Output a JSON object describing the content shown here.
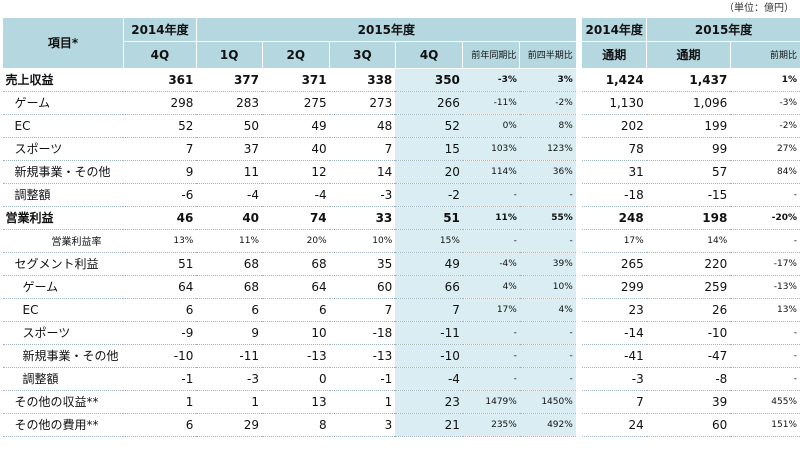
{
  "unit_note": "（単位：億円）",
  "header": {
    "item": "項目*",
    "y2014": "2014年度",
    "y2015": "2015年度",
    "y2014_annual": "2014年度",
    "y2015_annual": "2015年度",
    "q2014_4q": "4Q",
    "q1": "1Q",
    "q2": "2Q",
    "q3": "3Q",
    "q4": "4Q",
    "yoy": "前年同期比",
    "qoq": "前四半期比",
    "full_year_2014": "通期",
    "full_year_2015": "通期",
    "yoy_annual": "前期比"
  },
  "rows": [
    {
      "label": "売上収益",
      "c": [
        "361",
        "377",
        "371",
        "338",
        "350",
        "-3%",
        "3%",
        "1,424",
        "1,437",
        "1%"
      ]
    },
    {
      "label": "ゲーム",
      "c": [
        "298",
        "283",
        "275",
        "273",
        "266",
        "-11%",
        "-2%",
        "1,130",
        "1,096",
        "-3%"
      ]
    },
    {
      "label": "EC",
      "c": [
        "52",
        "50",
        "49",
        "48",
        "52",
        "0%",
        "8%",
        "202",
        "199",
        "-2%"
      ]
    },
    {
      "label": "スポーツ",
      "c": [
        "7",
        "37",
        "40",
        "7",
        "15",
        "103%",
        "123%",
        "78",
        "99",
        "27%"
      ]
    },
    {
      "label": "新規事業・その他",
      "c": [
        "9",
        "11",
        "12",
        "14",
        "20",
        "114%",
        "36%",
        "31",
        "57",
        "84%"
      ]
    },
    {
      "label": "調整額",
      "c": [
        "-6",
        "-4",
        "-4",
        "-3",
        "-2",
        "-",
        "-",
        "-18",
        "-15",
        "-"
      ]
    },
    {
      "label": "営業利益",
      "c": [
        "46",
        "40",
        "74",
        "33",
        "51",
        "11%",
        "55%",
        "248",
        "198",
        "-20%"
      ]
    },
    {
      "label": "営業利益率",
      "c": [
        "13%",
        "11%",
        "20%",
        "10%",
        "15%",
        "-",
        "-",
        "17%",
        "14%",
        "-"
      ]
    },
    {
      "label": "セグメント利益",
      "c": [
        "51",
        "68",
        "68",
        "35",
        "49",
        "-4%",
        "39%",
        "265",
        "220",
        "-17%"
      ]
    },
    {
      "label": "ゲーム",
      "c": [
        "64",
        "68",
        "64",
        "60",
        "66",
        "4%",
        "10%",
        "299",
        "259",
        "-13%"
      ]
    },
    {
      "label": "EC",
      "c": [
        "6",
        "6",
        "6",
        "7",
        "7",
        "17%",
        "4%",
        "23",
        "26",
        "13%"
      ]
    },
    {
      "label": "スポーツ",
      "c": [
        "-9",
        "9",
        "10",
        "-18",
        "-11",
        "-",
        "-",
        "-14",
        "-10",
        "-"
      ]
    },
    {
      "label": "新規事業・その他",
      "c": [
        "-10",
        "-11",
        "-13",
        "-13",
        "-10",
        "-",
        "-",
        "-41",
        "-47",
        "-"
      ]
    },
    {
      "label": "調整額",
      "c": [
        "-1",
        "-3",
        "0",
        "-1",
        "-4",
        "-",
        "-",
        "-3",
        "-8",
        "-"
      ]
    },
    {
      "label": "その他の収益**",
      "c": [
        "1",
        "1",
        "13",
        "1",
        "23",
        "1479%",
        "1450%",
        "7",
        "39",
        "455%"
      ]
    },
    {
      "label": "その他の費用**",
      "c": [
        "6",
        "29",
        "8",
        "3",
        "21",
        "235%",
        "492%",
        "24",
        "60",
        "151%"
      ]
    }
  ]
}
